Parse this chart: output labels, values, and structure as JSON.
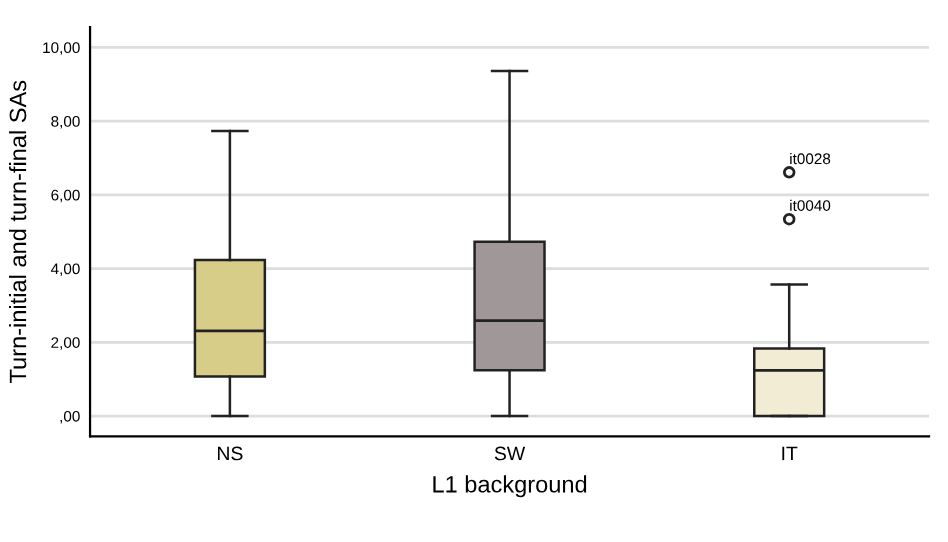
{
  "chart_data": {
    "type": "box",
    "xlabel": "L1 background",
    "ylabel": "Turn-initial and turn-final SAs",
    "categories": [
      "NS",
      "SW",
      "IT"
    ],
    "boxes": [
      {
        "low": 0,
        "q1": 1.07,
        "median": 2.31,
        "q3": 4.23,
        "high": 7.73
      },
      {
        "low": 0,
        "q1": 1.24,
        "median": 2.59,
        "q3": 4.73,
        "high": 9.36
      },
      {
        "low": 0,
        "q1": 0,
        "median": 1.24,
        "q3": 1.83,
        "high": 3.57,
        "outliers": [
          6.61,
          5.34
        ]
      }
    ],
    "colors": [
      "#d8cd88",
      "#a09898",
      "#f3ecd4"
    ],
    "ylim": [
      -0.55,
      10.55
    ],
    "yticks": [
      {
        "value": 0,
        "label": ",00"
      },
      {
        "value": 2,
        "label": "2,00"
      },
      {
        "value": 4,
        "label": "4,00"
      },
      {
        "value": 6,
        "label": "6,00"
      },
      {
        "value": 8,
        "label": "8,00"
      },
      {
        "value": 10,
        "label": "10,00"
      }
    ],
    "grid": "y",
    "annotations": [
      "it0028",
      "it0040"
    ]
  }
}
